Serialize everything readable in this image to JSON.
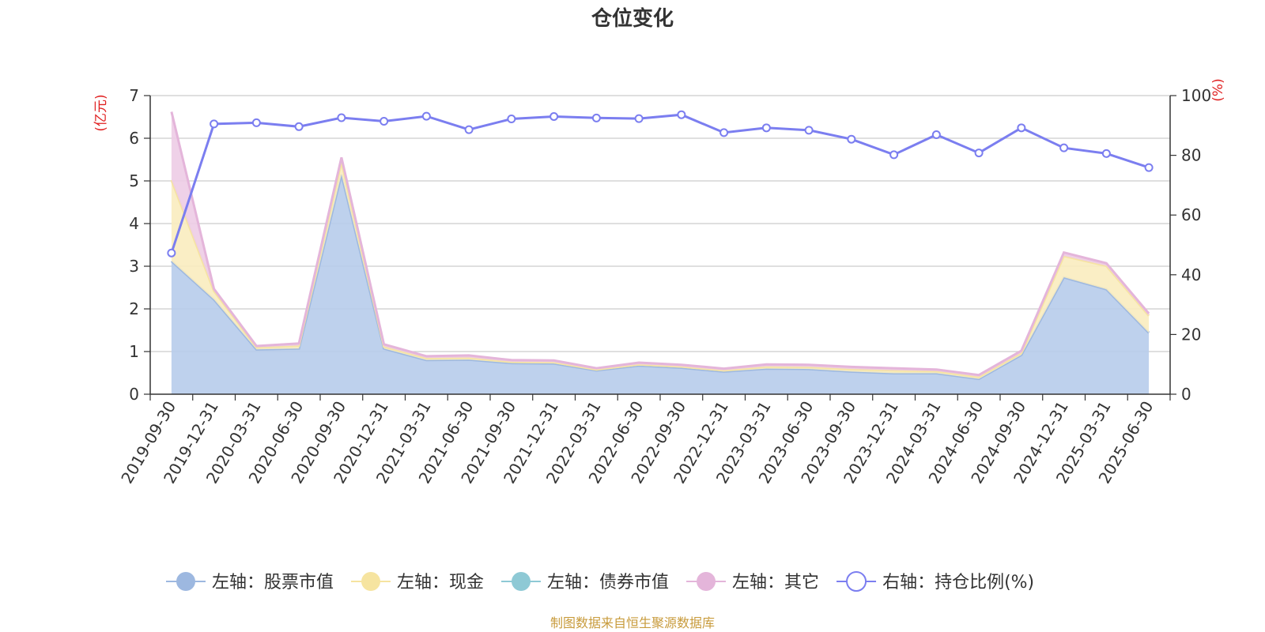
{
  "chart_data": {
    "type": "area",
    "title": "仓位变化",
    "source_note": "制图数据来自恒生聚源数据库",
    "left_unit": "(亿元)",
    "right_unit": "(%)",
    "x": [
      "2019-09-30",
      "2019-12-31",
      "2020-03-31",
      "2020-06-30",
      "2020-09-30",
      "2020-12-31",
      "2021-03-31",
      "2021-06-30",
      "2021-09-30",
      "2021-12-31",
      "2022-03-31",
      "2022-06-30",
      "2022-09-30",
      "2022-12-31",
      "2023-03-31",
      "2023-06-30",
      "2023-09-30",
      "2023-12-31",
      "2024-03-31",
      "2024-06-30",
      "2024-09-30",
      "2024-12-31",
      "2025-03-31",
      "2025-06-30"
    ],
    "left_axis": {
      "min": 0,
      "max": 7,
      "ticks": [
        0,
        1,
        2,
        3,
        4,
        5,
        6,
        7
      ]
    },
    "right_axis": {
      "min": 0,
      "max": 100,
      "ticks": [
        0,
        20,
        40,
        60,
        80,
        100
      ]
    },
    "grid": true,
    "legend_position": "bottom",
    "series": [
      {
        "name": "左轴：股票市值",
        "axis": "left",
        "stacked": true,
        "color": "#9db8e0",
        "fill": "#b7cceb",
        "values": [
          3.12,
          2.22,
          1.05,
          1.07,
          5.15,
          1.07,
          0.8,
          0.81,
          0.73,
          0.72,
          0.56,
          0.67,
          0.62,
          0.53,
          0.6,
          0.59,
          0.53,
          0.49,
          0.49,
          0.36,
          0.92,
          2.74,
          2.46,
          1.44
        ]
      },
      {
        "name": "左轴：现金",
        "axis": "left",
        "stacked": true,
        "color": "#f6e4a0",
        "fill": "#f9ecbf",
        "values": [
          1.9,
          0.2,
          0.05,
          0.07,
          0.3,
          0.05,
          0.05,
          0.05,
          0.03,
          0.03,
          0.02,
          0.03,
          0.03,
          0.03,
          0.05,
          0.05,
          0.06,
          0.07,
          0.05,
          0.05,
          0.05,
          0.5,
          0.55,
          0.4
        ]
      },
      {
        "name": "左轴：债券市值",
        "axis": "left",
        "stacked": true,
        "color": "#8ec9d5",
        "fill": "#a8d8e0",
        "values": [
          0,
          0,
          0,
          0,
          0,
          0,
          0,
          0,
          0,
          0,
          0,
          0,
          0,
          0,
          0,
          0,
          0,
          0,
          0,
          0,
          0,
          0,
          0,
          0
        ]
      },
      {
        "name": "左轴：其它",
        "axis": "left",
        "stacked": true,
        "color": "#e4b5da",
        "fill": "#edcce6",
        "values": [
          1.6,
          0.05,
          0.03,
          0.05,
          0.1,
          0.05,
          0.04,
          0.05,
          0.04,
          0.04,
          0.03,
          0.04,
          0.04,
          0.04,
          0.05,
          0.05,
          0.05,
          0.05,
          0.04,
          0.04,
          0.05,
          0.08,
          0.06,
          0.05
        ]
      },
      {
        "name": "右轴：持仓比例(%)",
        "axis": "right",
        "stacked": false,
        "color": "#7b7ef0",
        "fill": "none",
        "values": [
          47.3,
          90.5,
          90.9,
          89.6,
          92.6,
          91.4,
          93.1,
          88.6,
          92.2,
          93.0,
          92.5,
          92.3,
          93.6,
          87.6,
          89.2,
          88.4,
          85.4,
          80.2,
          86.9,
          80.8,
          89.2,
          82.5,
          80.6,
          75.9
        ]
      }
    ]
  }
}
